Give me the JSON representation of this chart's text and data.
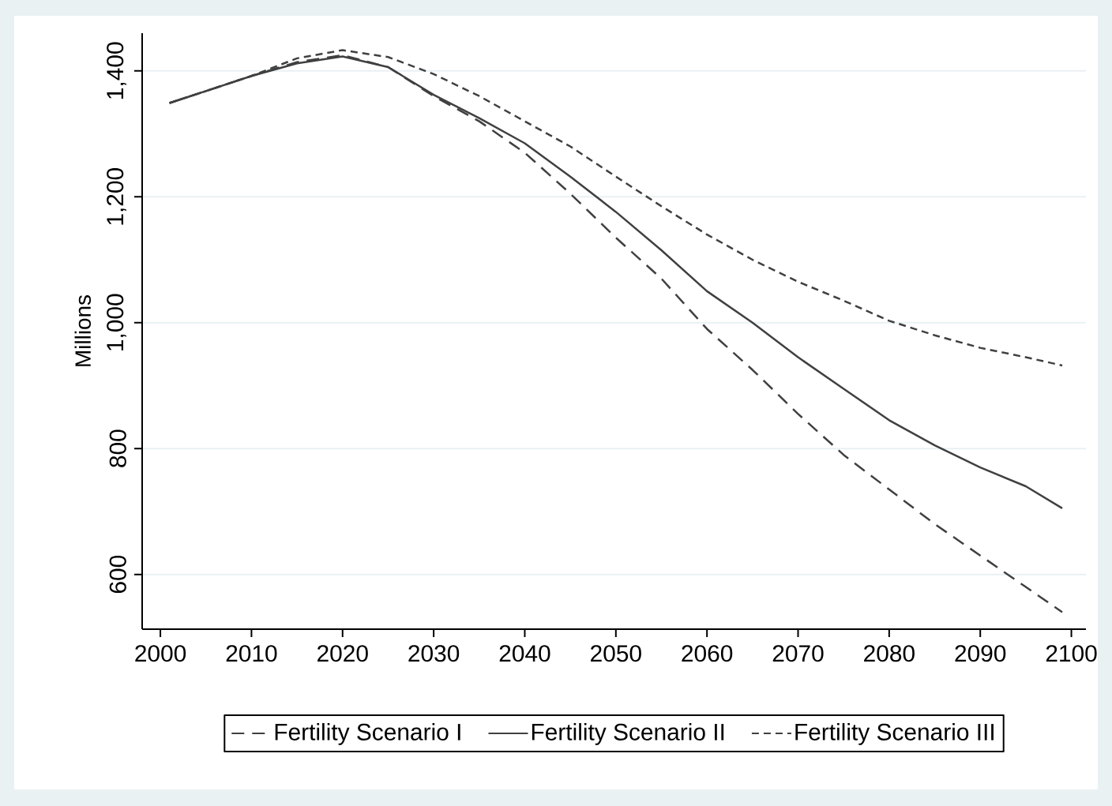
{
  "chart_data": {
    "type": "line",
    "ylabel": "Millions",
    "x": [
      2001,
      2005,
      2010,
      2015,
      2020,
      2025,
      2030,
      2035,
      2040,
      2045,
      2050,
      2055,
      2060,
      2065,
      2070,
      2075,
      2080,
      2085,
      2090,
      2095,
      2099
    ],
    "series": [
      {
        "name": "Fertility Scenario I",
        "color": "#404040",
        "line_style": "dashed",
        "values": [
          1349,
          1368,
          1392,
          1414,
          1425,
          1406,
          1360,
          1320,
          1270,
          1205,
          1135,
          1070,
          990,
          925,
          855,
          790,
          735,
          680,
          630,
          580,
          540
        ]
      },
      {
        "name": "Fertility Scenario II",
        "color": "#404040",
        "line_style": "solid",
        "values": [
          1349,
          1368,
          1392,
          1412,
          1423,
          1406,
          1362,
          1325,
          1285,
          1232,
          1176,
          1115,
          1050,
          1000,
          945,
          895,
          845,
          805,
          770,
          740,
          705
        ]
      },
      {
        "name": "Fertility Scenario III",
        "color": "#404040",
        "line_style": "dotted",
        "values": [
          1349,
          1368,
          1392,
          1420,
          1433,
          1422,
          1395,
          1360,
          1320,
          1280,
          1232,
          1185,
          1140,
          1100,
          1065,
          1035,
          1003,
          980,
          960,
          945,
          932
        ]
      }
    ],
    "xlim": [
      1998,
      2101.6
    ],
    "ylim": [
      513,
      1460
    ],
    "xticks": [
      2000,
      2010,
      2020,
      2030,
      2040,
      2050,
      2060,
      2070,
      2080,
      2090,
      2100
    ],
    "yticks": [
      {
        "value": 600,
        "label": "600"
      },
      {
        "value": 800,
        "label": "800"
      },
      {
        "value": 1000,
        "label": "1,000"
      },
      {
        "value": 1200,
        "label": "1,200"
      },
      {
        "value": 1400,
        "label": "1,400"
      }
    ],
    "grid": "y",
    "legend": "bottom",
    "marker": "none"
  }
}
